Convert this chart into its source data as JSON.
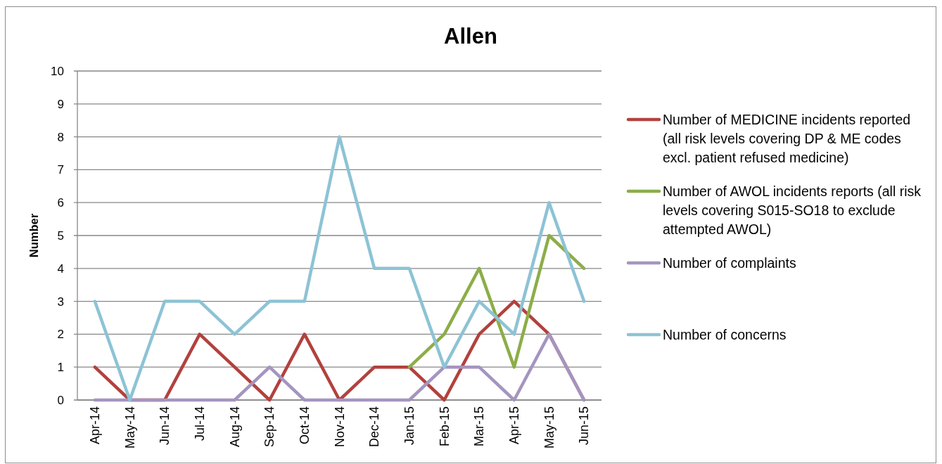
{
  "chart_data": {
    "type": "line",
    "title": "Allen",
    "ylabel": "Number",
    "categories": [
      "Apr-14",
      "May-14",
      "Jun-14",
      "Jul-14",
      "Aug-14",
      "Sep-14",
      "Oct-14",
      "Nov-14",
      "Dec-14",
      "Jan-15",
      "Feb-15",
      "Mar-15",
      "Apr-15",
      "May-15",
      "Jun-15"
    ],
    "ylim": [
      0,
      10
    ],
    "yticks": [
      0,
      1,
      2,
      3,
      4,
      5,
      6,
      7,
      8,
      9,
      10
    ],
    "grid": "y",
    "legend": "right",
    "series": [
      {
        "name": "Number of MEDICINE incidents reported (all risk levels covering DP & ME codes excl. patient refused medicine)",
        "color": "#b2413d",
        "values": [
          1,
          0,
          0,
          2,
          1,
          0,
          2,
          0,
          1,
          1,
          0,
          2,
          3,
          2,
          0
        ]
      },
      {
        "name": "Number of AWOL incidents reports (all risk levels covering S015-SO18 to exclude attempted AWOL)",
        "color": "#8cad48",
        "values": [
          null,
          null,
          null,
          null,
          null,
          null,
          null,
          null,
          null,
          1,
          2,
          4,
          1,
          5,
          4
        ]
      },
      {
        "name": "Number of complaints",
        "color": "#a495bf",
        "values": [
          0,
          0,
          0,
          0,
          0,
          1,
          0,
          0,
          0,
          0,
          1,
          1,
          0,
          2,
          0
        ]
      },
      {
        "name": "Number of concerns",
        "color": "#8dc3d5",
        "values": [
          3,
          0,
          3,
          3,
          2,
          3,
          3,
          8,
          4,
          4,
          1,
          3,
          2,
          6,
          3
        ]
      }
    ]
  }
}
